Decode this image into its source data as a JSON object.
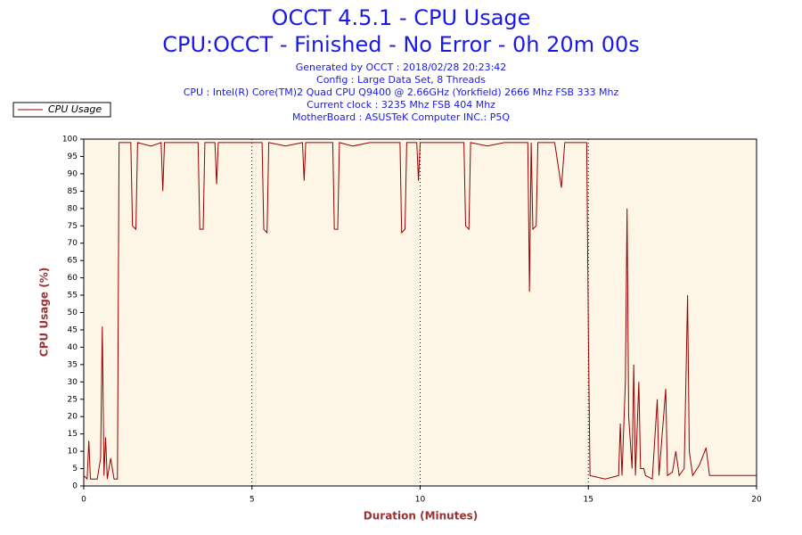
{
  "chart_data": {
    "type": "line",
    "title": "OCCT 4.5.1 - CPU Usage",
    "subtitle": "CPU:OCCT - Finished - No Error - 0h 20m 00s",
    "info": [
      "Generated by OCCT : 2018/02/28 20:23:42",
      "Config : Large Data Set, 8 Threads",
      "CPU : Intel(R) Core(TM)2 Quad CPU Q9400 @ 2.66GHz (Yorkfield) 2666 Mhz FSB 333 Mhz",
      "Current clock : 3235 Mhz FSB 404 Mhz",
      "MotherBoard : ASUSTeK Computer INC.: P5Q"
    ],
    "xlabel": "Duration (Minutes)",
    "ylabel": "CPU Usage (%)",
    "xlim": [
      0,
      20
    ],
    "ylim": [
      0,
      100
    ],
    "xticks": [
      0,
      5,
      10,
      15,
      20
    ],
    "yticks": [
      0,
      5,
      10,
      15,
      20,
      25,
      30,
      35,
      40,
      45,
      50,
      55,
      60,
      65,
      70,
      75,
      80,
      85,
      90,
      95,
      100
    ],
    "grid": true,
    "legend": "top-left",
    "x": [
      0,
      0.1,
      0.15,
      0.2,
      0.4,
      0.5,
      0.55,
      0.6,
      0.65,
      0.7,
      0.8,
      0.9,
      1.0,
      1.05,
      1.4,
      1.45,
      1.55,
      1.6,
      2.0,
      2.3,
      2.35,
      2.4,
      3.4,
      3.45,
      3.55,
      3.6,
      3.9,
      3.95,
      4.0,
      5.3,
      5.35,
      5.45,
      5.5,
      6.0,
      6.5,
      6.55,
      6.6,
      7.4,
      7.45,
      7.55,
      7.6,
      8.0,
      8.5,
      9.4,
      9.45,
      9.55,
      9.6,
      9.9,
      9.95,
      10.0,
      11.3,
      11.35,
      11.45,
      11.5,
      12.0,
      12.5,
      13.2,
      13.25,
      13.3,
      13.35,
      13.45,
      13.5,
      14.0,
      14.2,
      14.3,
      14.95,
      15.0,
      15.05,
      15.5,
      15.9,
      15.95,
      16.0,
      16.1,
      16.15,
      16.2,
      16.3,
      16.35,
      16.4,
      16.5,
      16.55,
      16.65,
      16.7,
      16.9,
      17.05,
      17.1,
      17.3,
      17.35,
      17.5,
      17.6,
      17.7,
      17.85,
      17.95,
      18.0,
      18.1,
      18.3,
      18.5,
      18.6,
      19.0,
      19.5,
      20
    ],
    "series": [
      {
        "name": "CPU Usage",
        "color": "#990000",
        "values": [
          3,
          2,
          13,
          2,
          2,
          8,
          46,
          3,
          14,
          2,
          8,
          2,
          2,
          99,
          99,
          75,
          74,
          99,
          98,
          99,
          85,
          99,
          99,
          74,
          74,
          99,
          99,
          87,
          99,
          99,
          74,
          73,
          99,
          98,
          99,
          88,
          99,
          99,
          74,
          74,
          99,
          98,
          99,
          99,
          73,
          74,
          99,
          99,
          88,
          99,
          99,
          75,
          74,
          99,
          98,
          99,
          99,
          56,
          99,
          74,
          75,
          99,
          99,
          86,
          99,
          99,
          44,
          3,
          2,
          3,
          18,
          3,
          30,
          80,
          20,
          5,
          35,
          3,
          30,
          5,
          5,
          3,
          2,
          25,
          3,
          28,
          3,
          4,
          10,
          3,
          5,
          55,
          10,
          3,
          6,
          11,
          3,
          3,
          3,
          3
        ]
      }
    ]
  }
}
